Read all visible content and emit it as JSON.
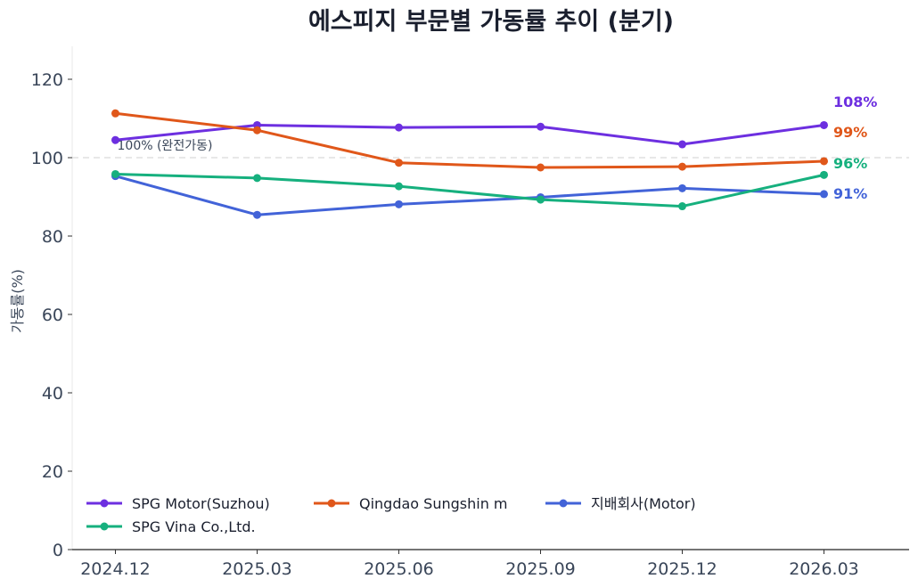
{
  "chart_data": {
    "type": "line",
    "title": "에스피지 부문별 가동률 추이 (분기)",
    "xlabel": "",
    "ylabel": "가동률(%)",
    "categories": [
      "2024.12",
      "2025.03",
      "2025.06",
      "2025.09",
      "2025.12",
      "2026.03"
    ],
    "ylim": [
      0,
      128
    ],
    "yticks": [
      0,
      20,
      40,
      60,
      80,
      100,
      120
    ],
    "grid": false,
    "legend_position": "lower-left",
    "reference_line": {
      "value": 100,
      "label": "100% (완전가동)"
    },
    "series": [
      {
        "name": "SPG Motor(Suzhou)",
        "color": "#6d2fe0",
        "values": [
          104.5,
          108.3,
          107.7,
          107.9,
          103.4,
          108.3
        ],
        "end_label": "108%"
      },
      {
        "name": "Qingdao Sungshin m",
        "color": "#e0571a",
        "values": [
          111.3,
          107.0,
          98.7,
          97.5,
          97.7,
          99.1
        ],
        "end_label": "99%"
      },
      {
        "name": "지배회사(Motor)",
        "color": "#4263d8",
        "values": [
          95.3,
          85.4,
          88.1,
          89.9,
          92.2,
          90.7
        ],
        "end_label": "91%"
      },
      {
        "name": "SPG Vina Co.,Ltd.",
        "color": "#16b07e",
        "values": [
          95.8,
          94.8,
          92.7,
          89.3,
          87.6,
          95.6
        ],
        "end_label": "96%"
      }
    ]
  }
}
